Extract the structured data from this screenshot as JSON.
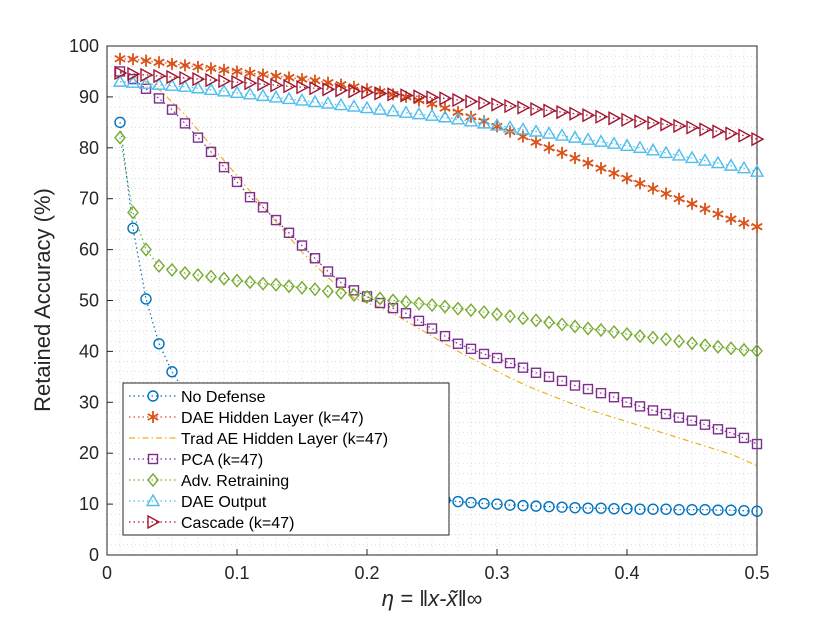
{
  "chart_data": {
    "type": "line",
    "xlabel": "η = ‖x-x̃‖∞",
    "ylabel": "Retained Accuracy (%)",
    "xlim": [
      0,
      0.5
    ],
    "ylim": [
      0,
      100
    ],
    "xticks": [
      0,
      0.1,
      0.2,
      0.3,
      0.4,
      0.5
    ],
    "xtick_labels": [
      "0",
      "0.1",
      "0.2",
      "0.3",
      "0.4",
      "0.5"
    ],
    "yticks": [
      0,
      10,
      20,
      30,
      40,
      50,
      60,
      70,
      80,
      90,
      100
    ],
    "ytick_labels": [
      "0",
      "10",
      "20",
      "30",
      "40",
      "50",
      "60",
      "70",
      "80",
      "90",
      "100"
    ],
    "grid": "dotted",
    "legend_position": "bottom-left",
    "series": [
      {
        "name": "No Defense",
        "color": "#0072BD",
        "marker": "circle",
        "line": "dotted",
        "x": [
          0.01,
          0.02,
          0.03,
          0.04,
          0.05,
          0.06,
          0.07,
          0.08,
          0.09,
          0.1,
          0.11,
          0.12,
          0.13,
          0.14,
          0.15,
          0.16,
          0.17,
          0.18,
          0.19,
          0.2,
          0.21,
          0.22,
          0.23,
          0.24,
          0.25,
          0.26,
          0.27,
          0.28,
          0.29,
          0.3,
          0.31,
          0.32,
          0.33,
          0.34,
          0.35,
          0.36,
          0.37,
          0.38,
          0.39,
          0.4,
          0.41,
          0.42,
          0.43,
          0.44,
          0.45,
          0.46,
          0.47,
          0.48,
          0.49,
          0.5
        ],
        "y": [
          85,
          64.2,
          50.3,
          41.5,
          36,
          32,
          29.5,
          26.3,
          24.6,
          22.8,
          21,
          19.7,
          18.6,
          17,
          15.9,
          15,
          14.2,
          13.7,
          13.3,
          13,
          12.6,
          12.1,
          11.6,
          11.3,
          11,
          10.8,
          10.5,
          10.3,
          10.1,
          10.0,
          9.8,
          9.7,
          9.6,
          9.5,
          9.4,
          9.3,
          9.2,
          9.2,
          9.1,
          9.1,
          9.0,
          9.0,
          9.0,
          8.9,
          8.9,
          8.9,
          8.8,
          8.8,
          8.7,
          8.6
        ]
      },
      {
        "name": "DAE Hidden Layer (k=47)",
        "color": "#D95319",
        "marker": "asterisk",
        "line": "dotted",
        "x": [
          0.01,
          0.02,
          0.03,
          0.04,
          0.05,
          0.06,
          0.07,
          0.08,
          0.09,
          0.1,
          0.11,
          0.12,
          0.13,
          0.14,
          0.15,
          0.16,
          0.17,
          0.18,
          0.19,
          0.2,
          0.21,
          0.22,
          0.23,
          0.24,
          0.25,
          0.26,
          0.27,
          0.28,
          0.29,
          0.3,
          0.31,
          0.32,
          0.33,
          0.34,
          0.35,
          0.36,
          0.37,
          0.38,
          0.39,
          0.4,
          0.41,
          0.42,
          0.43,
          0.44,
          0.45,
          0.46,
          0.47,
          0.48,
          0.49,
          0.5
        ],
        "y": [
          97.5,
          97.4,
          97.1,
          96.8,
          96.5,
          96.2,
          95.9,
          95.6,
          95.3,
          95,
          94.7,
          94.4,
          94.1,
          93.8,
          93.5,
          93.2,
          92.8,
          92.4,
          92,
          91.5,
          91,
          90.5,
          90,
          89.3,
          88.6,
          87.8,
          87,
          86.1,
          85.2,
          84.2,
          83.2,
          82.2,
          81.1,
          80.0,
          79.0,
          78.0,
          77.0,
          76.0,
          75.0,
          74.0,
          73.0,
          72.0,
          71.0,
          70.0,
          69.0,
          68.0,
          67.0,
          66.0,
          65.2,
          64.5
        ]
      },
      {
        "name": "Trad AE Hidden Layer (k=47)",
        "color": "#EDB120",
        "marker": "none",
        "line": "dash-dot",
        "x": [
          0.01,
          0.02,
          0.03,
          0.04,
          0.05,
          0.06,
          0.07,
          0.08,
          0.09,
          0.1,
          0.11,
          0.12,
          0.13,
          0.14,
          0.15,
          0.16,
          0.17,
          0.18,
          0.19,
          0.2,
          0.21,
          0.22,
          0.23,
          0.24,
          0.25,
          0.26,
          0.27,
          0.28,
          0.29,
          0.3,
          0.31,
          0.32,
          0.33,
          0.34,
          0.35,
          0.36,
          0.37,
          0.38,
          0.39,
          0.4,
          0.41,
          0.42,
          0.43,
          0.44,
          0.45,
          0.46,
          0.47,
          0.48,
          0.49,
          0.5
        ],
        "y": [
          95,
          94,
          93,
          91.5,
          89,
          86.5,
          83.5,
          80.5,
          77.5,
          74.5,
          71.5,
          68.5,
          65.5,
          62.5,
          59.5,
          57,
          54.5,
          52.3,
          50.5,
          49.5,
          48.7,
          47.5,
          46,
          44.5,
          43,
          41.5,
          40,
          38.7,
          37.4,
          36.1,
          34.8,
          33.6,
          32.5,
          31.5,
          30.5,
          29.5,
          28.6,
          27.8,
          27,
          26.2,
          25.4,
          24.6,
          23.8,
          23,
          22.2,
          21.4,
          20.6,
          19.8,
          18.7,
          17.5
        ]
      },
      {
        "name": "PCA (k=47)",
        "color": "#7E2F8E",
        "marker": "square",
        "line": "dotted",
        "x": [
          0.01,
          0.02,
          0.03,
          0.04,
          0.05,
          0.06,
          0.07,
          0.08,
          0.09,
          0.1,
          0.11,
          0.12,
          0.13,
          0.14,
          0.15,
          0.16,
          0.17,
          0.18,
          0.19,
          0.2,
          0.21,
          0.22,
          0.23,
          0.24,
          0.25,
          0.26,
          0.27,
          0.28,
          0.29,
          0.3,
          0.31,
          0.32,
          0.33,
          0.34,
          0.35,
          0.36,
          0.37,
          0.38,
          0.39,
          0.4,
          0.41,
          0.42,
          0.43,
          0.44,
          0.45,
          0.46,
          0.47,
          0.48,
          0.49,
          0.5
        ],
        "y": [
          95,
          93.5,
          91.6,
          89.7,
          87.5,
          84.8,
          82,
          79.2,
          76.2,
          73.3,
          70.3,
          68.3,
          65.8,
          63.3,
          60.8,
          58.3,
          55.7,
          53.5,
          52,
          50.8,
          49.5,
          48.5,
          47.5,
          46,
          44.5,
          43,
          41.5,
          40.5,
          39.5,
          38.7,
          37.7,
          36.8,
          35.8,
          35,
          34.2,
          33.3,
          32.6,
          31.8,
          31,
          30,
          29.2,
          28.4,
          27.7,
          27,
          26.4,
          25.6,
          24.7,
          24,
          23,
          21.8
        ]
      },
      {
        "name": "Adv. Retraining",
        "color": "#77AC30",
        "marker": "diamond",
        "line": "dotted",
        "x": [
          0.01,
          0.02,
          0.03,
          0.04,
          0.05,
          0.06,
          0.07,
          0.08,
          0.09,
          0.1,
          0.11,
          0.12,
          0.13,
          0.14,
          0.15,
          0.16,
          0.17,
          0.18,
          0.19,
          0.2,
          0.21,
          0.22,
          0.23,
          0.24,
          0.25,
          0.26,
          0.27,
          0.28,
          0.29,
          0.3,
          0.31,
          0.32,
          0.33,
          0.34,
          0.35,
          0.36,
          0.37,
          0.38,
          0.39,
          0.4,
          0.41,
          0.42,
          0.43,
          0.44,
          0.45,
          0.46,
          0.47,
          0.48,
          0.49,
          0.5
        ],
        "y": [
          82,
          67.3,
          60,
          56.8,
          56,
          55.4,
          55,
          54.7,
          54.3,
          53.9,
          53.6,
          53.3,
          53.1,
          52.8,
          52.5,
          52.2,
          51.8,
          51.5,
          51.1,
          50.7,
          50.4,
          50,
          49.7,
          49.4,
          49.1,
          48.8,
          48.4,
          48.1,
          47.7,
          47.3,
          46.9,
          46.5,
          46.1,
          45.7,
          45.3,
          44.9,
          44.5,
          44.2,
          43.8,
          43.4,
          43.0,
          42.7,
          42.4,
          42.0,
          41.6,
          41.2,
          40.9,
          40.6,
          40.3,
          40.1
        ]
      },
      {
        "name": "DAE Output",
        "color": "#4DBEEE",
        "marker": "triangle-up",
        "line": "dotted",
        "x": [
          0.01,
          0.02,
          0.03,
          0.04,
          0.05,
          0.06,
          0.07,
          0.08,
          0.09,
          0.1,
          0.11,
          0.12,
          0.13,
          0.14,
          0.15,
          0.16,
          0.17,
          0.18,
          0.19,
          0.2,
          0.21,
          0.22,
          0.23,
          0.24,
          0.25,
          0.26,
          0.27,
          0.28,
          0.29,
          0.3,
          0.31,
          0.32,
          0.33,
          0.34,
          0.35,
          0.36,
          0.37,
          0.38,
          0.39,
          0.4,
          0.41,
          0.42,
          0.43,
          0.44,
          0.45,
          0.46,
          0.47,
          0.48,
          0.49,
          0.5
        ],
        "y": [
          93,
          92.8,
          92.6,
          92.4,
          92.2,
          92,
          91.7,
          91.4,
          91.1,
          90.8,
          90.5,
          90.2,
          89.9,
          89.6,
          89.3,
          89,
          88.7,
          88.4,
          88.1,
          87.8,
          87.5,
          87.2,
          86.9,
          86.6,
          86.3,
          86,
          85.6,
          85.2,
          84.8,
          84.4,
          84,
          83.6,
          83.2,
          82.8,
          82.4,
          82,
          81.6,
          81.2,
          80.8,
          80.4,
          80,
          79.5,
          79,
          78.5,
          78,
          77.5,
          77,
          76.5,
          76,
          75.3
        ]
      },
      {
        "name": "Cascade (k=47)",
        "color": "#A2142F",
        "marker": "triangle-right",
        "line": "dotted",
        "x": [
          0.01,
          0.02,
          0.03,
          0.04,
          0.05,
          0.06,
          0.07,
          0.08,
          0.09,
          0.1,
          0.11,
          0.12,
          0.13,
          0.14,
          0.15,
          0.16,
          0.17,
          0.18,
          0.19,
          0.2,
          0.21,
          0.22,
          0.23,
          0.24,
          0.25,
          0.26,
          0.27,
          0.28,
          0.29,
          0.3,
          0.31,
          0.32,
          0.33,
          0.34,
          0.35,
          0.36,
          0.37,
          0.38,
          0.39,
          0.4,
          0.41,
          0.42,
          0.43,
          0.44,
          0.45,
          0.46,
          0.47,
          0.48,
          0.49,
          0.5
        ],
        "y": [
          94.7,
          94.5,
          94.3,
          94.1,
          93.9,
          93.7,
          93.5,
          93.3,
          93.1,
          92.9,
          92.7,
          92.5,
          92.3,
          92.1,
          91.9,
          91.7,
          91.5,
          91.3,
          91.1,
          90.9,
          90.7,
          90.5,
          90.3,
          90.1,
          89.9,
          89.7,
          89.4,
          89.1,
          88.8,
          88.5,
          88.2,
          87.9,
          87.6,
          87.3,
          87,
          86.7,
          86.4,
          86.1,
          85.8,
          85.5,
          85.2,
          84.9,
          84.6,
          84.3,
          84,
          83.6,
          83.2,
          82.8,
          82.4,
          81.7
        ]
      }
    ]
  }
}
